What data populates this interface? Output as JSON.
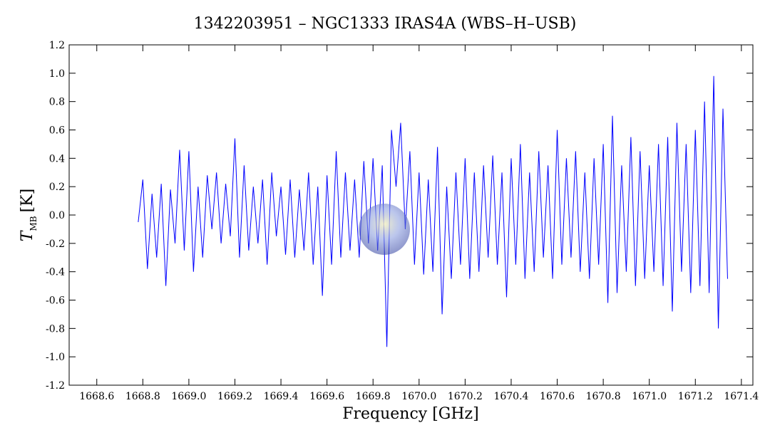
{
  "chart_data": {
    "type": "line",
    "title": "1342203951 – NGC1333 IRAS4A (WBS–H–USB)",
    "xlabel": "Frequency [GHz]",
    "ylabel": "T",
    "ylabel_sub": "MB",
    "ylabel_unit": "[K]",
    "xlim": [
      1668.48,
      1671.45
    ],
    "ylim": [
      -1.2,
      1.2
    ],
    "xticks": [
      1668.6,
      1668.8,
      {
        "value": 1669,
        "label": "1669.0"
      },
      1669.2,
      1669.4,
      1669.6,
      1669.8,
      {
        "value": 1670,
        "label": "1670.0"
      },
      1670.2,
      1670.4,
      1670.6,
      1670.8,
      {
        "value": 1671,
        "label": "1671.0"
      },
      1671.2,
      1671.4
    ],
    "yticks": [
      -1.2,
      {
        "value": -1,
        "label": "-1.0"
      },
      -0.8,
      -0.6,
      -0.4,
      -0.2,
      {
        "value": 0,
        "label": "0.0"
      },
      0.2,
      0.4,
      0.6,
      0.8,
      {
        "value": 1,
        "label": "1.0"
      },
      1.2
    ],
    "series": [
      {
        "color": "#0000ff",
        "x": [
          1668.78,
          1668.8,
          1668.82,
          1668.84,
          1668.86,
          1668.88,
          1668.9,
          1668.92,
          1668.94,
          1668.96,
          1668.98,
          1669.0,
          1669.02,
          1669.04,
          1669.06,
          1669.08,
          1669.1,
          1669.12,
          1669.14,
          1669.16,
          1669.18,
          1669.2,
          1669.22,
          1669.24,
          1669.26,
          1669.28,
          1669.3,
          1669.32,
          1669.34,
          1669.36,
          1669.38,
          1669.4,
          1669.42,
          1669.44,
          1669.46,
          1669.48,
          1669.5,
          1669.52,
          1669.54,
          1669.56,
          1669.58,
          1669.6,
          1669.62,
          1669.64,
          1669.66,
          1669.68,
          1669.7,
          1669.72,
          1669.74,
          1669.76,
          1669.78,
          1669.8,
          1669.82,
          1669.84,
          1669.86,
          1669.88,
          1669.9,
          1669.92,
          1669.94,
          1669.96,
          1669.98,
          1670.0,
          1670.02,
          1670.04,
          1670.06,
          1670.08,
          1670.1,
          1670.12,
          1670.14,
          1670.16,
          1670.18,
          1670.2,
          1670.22,
          1670.24,
          1670.26,
          1670.28,
          1670.3,
          1670.32,
          1670.34,
          1670.36,
          1670.38,
          1670.4,
          1670.42,
          1670.44,
          1670.46,
          1670.48,
          1670.5,
          1670.52,
          1670.54,
          1670.56,
          1670.58,
          1670.6,
          1670.62,
          1670.64,
          1670.66,
          1670.68,
          1670.7,
          1670.72,
          1670.74,
          1670.76,
          1670.78,
          1670.8,
          1670.82,
          1670.84,
          1670.86,
          1670.88,
          1670.9,
          1670.92,
          1670.94,
          1670.96,
          1670.98,
          1671.0,
          1671.02,
          1671.04,
          1671.06,
          1671.08,
          1671.1,
          1671.12,
          1671.14,
          1671.16,
          1671.18,
          1671.2,
          1671.22,
          1671.24,
          1671.26,
          1671.28,
          1671.3,
          1671.32,
          1671.34
        ],
        "values": [
          -0.05,
          0.25,
          -0.38,
          0.15,
          -0.3,
          0.22,
          -0.5,
          0.18,
          -0.2,
          0.46,
          -0.25,
          0.45,
          -0.4,
          0.2,
          -0.3,
          0.28,
          -0.1,
          0.3,
          -0.2,
          0.22,
          -0.15,
          0.54,
          -0.3,
          0.35,
          -0.25,
          0.2,
          -0.2,
          0.25,
          -0.35,
          0.3,
          -0.15,
          0.2,
          -0.28,
          0.25,
          -0.3,
          0.18,
          -0.25,
          0.3,
          -0.35,
          0.2,
          -0.57,
          0.28,
          -0.35,
          0.45,
          -0.3,
          0.3,
          -0.25,
          0.25,
          -0.3,
          0.38,
          -0.2,
          0.4,
          -0.25,
          0.35,
          -0.93,
          0.6,
          0.2,
          0.65,
          -0.1,
          0.45,
          -0.35,
          0.3,
          -0.42,
          0.25,
          -0.4,
          0.48,
          -0.7,
          0.2,
          -0.45,
          0.3,
          -0.35,
          0.4,
          -0.45,
          0.3,
          -0.4,
          0.35,
          -0.3,
          0.42,
          -0.35,
          0.3,
          -0.58,
          0.4,
          -0.35,
          0.5,
          -0.45,
          0.3,
          -0.4,
          0.45,
          -0.3,
          0.35,
          -0.45,
          0.6,
          -0.35,
          0.4,
          -0.3,
          0.45,
          -0.4,
          0.3,
          -0.45,
          0.4,
          -0.35,
          0.5,
          -0.62,
          0.7,
          -0.55,
          0.35,
          -0.4,
          0.55,
          -0.5,
          0.45,
          -0.45,
          0.35,
          -0.4,
          0.5,
          -0.5,
          0.55,
          -0.68,
          0.65,
          -0.4,
          0.5,
          -0.55,
          0.6,
          -0.5,
          0.8,
          -0.55,
          0.98,
          -0.8,
          0.75,
          -0.45
        ]
      }
    ]
  }
}
